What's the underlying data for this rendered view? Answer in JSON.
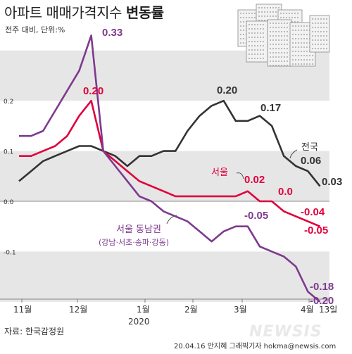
{
  "title_light": "아파트 매매가격지수",
  "title_bold": "변동률",
  "subtitle": "전주 대비, 단위:%",
  "source": "자료: 한국감정원",
  "credit": "20.04.16 안지혜 그래픽기자  hokma@newsis.com",
  "logo": "NEWSIS",
  "colors": {
    "national": "#333333",
    "seoul": "#e0003c",
    "southeast": "#7d3a8e",
    "band": "#e6e6e6",
    "axis": "#666666"
  },
  "chart_data": {
    "type": "line",
    "ylim": [
      -0.2,
      0.35
    ],
    "y_ticks": [
      {
        "value": 0.2,
        "label": "0.2"
      },
      {
        "value": 0.1,
        "label": "0.1"
      },
      {
        "value": 0.0,
        "label": "0.0"
      },
      {
        "value": -0.1,
        "label": "-0.1"
      }
    ],
    "x_ticks": [
      {
        "index": 0,
        "label": "11월"
      },
      {
        "index": 4,
        "label": "12월"
      },
      {
        "index": 9,
        "label": "1월"
      },
      {
        "index": 13,
        "label": "2월"
      },
      {
        "index": 17,
        "label": "3월"
      },
      {
        "index": 21,
        "label": "4월"
      },
      {
        "index": 22,
        "label": "13일"
      }
    ],
    "year_label": {
      "index": 9,
      "label": "2020"
    },
    "series": [
      {
        "name": "전국",
        "values": [
          0.04,
          0.06,
          0.08,
          0.09,
          0.1,
          0.11,
          0.11,
          0.1,
          0.09,
          0.07,
          0.09,
          0.09,
          0.1,
          0.1,
          0.14,
          0.17,
          0.19,
          0.2,
          0.16,
          0.16,
          0.17,
          0.15,
          0.09,
          0.07,
          0.06,
          0.03
        ],
        "labels": [
          {
            "index": 17,
            "text": "0.20"
          },
          {
            "index": 20,
            "text": "0.17"
          },
          {
            "index": 24,
            "text": "0.06"
          },
          {
            "index": 25,
            "text": "0.03"
          }
        ]
      },
      {
        "name": "서울",
        "values": [
          0.09,
          0.09,
          0.1,
          0.11,
          0.13,
          0.17,
          0.2,
          0.1,
          0.08,
          0.06,
          0.04,
          0.03,
          0.02,
          0.01,
          0.01,
          0.01,
          0.01,
          0.01,
          0.01,
          0.02,
          0.0,
          0.0,
          -0.02,
          -0.03,
          -0.04,
          -0.05
        ],
        "labels": [
          {
            "index": 6,
            "text": "0.20"
          },
          {
            "index": 19,
            "text": "0.02"
          },
          {
            "index": 21,
            "text": "0.0"
          },
          {
            "index": 24,
            "text": "-0.04"
          },
          {
            "index": 25,
            "text": "-0.05"
          }
        ]
      },
      {
        "name": "서울 동남권",
        "sublabel": "(강남·서초·송파·강동)",
        "values": [
          0.13,
          0.13,
          0.14,
          0.18,
          0.22,
          0.26,
          0.33,
          0.1,
          0.07,
          0.04,
          0.01,
          0.0,
          -0.02,
          -0.03,
          -0.04,
          -0.06,
          -0.08,
          -0.06,
          -0.05,
          -0.05,
          -0.09,
          -0.1,
          -0.11,
          -0.13,
          -0.18,
          -0.2
        ],
        "labels": [
          {
            "index": 6,
            "text": "0.33"
          },
          {
            "index": 19,
            "text": "-0.05"
          },
          {
            "index": 24,
            "text": "-0.18"
          },
          {
            "index": 25,
            "text": "-0.20"
          }
        ]
      }
    ]
  }
}
